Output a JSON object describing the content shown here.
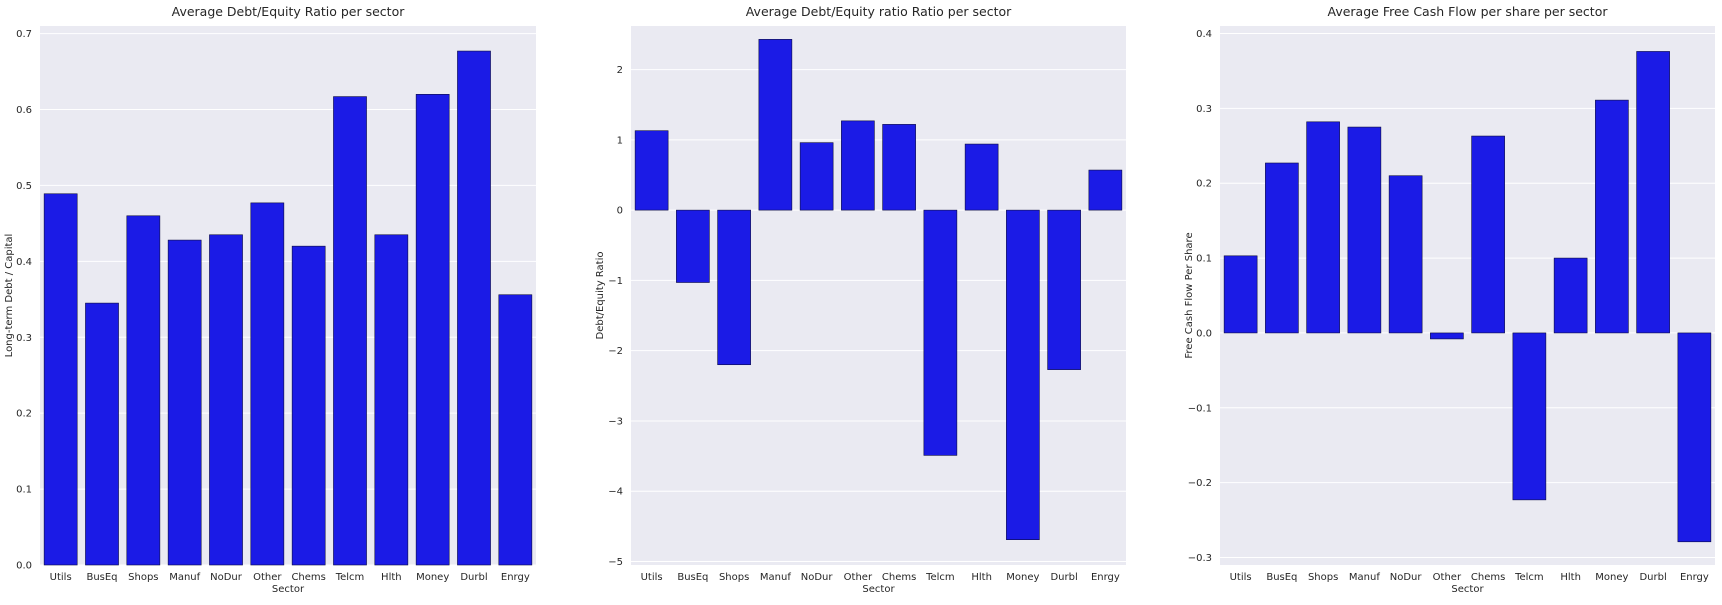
{
  "chart_data": [
    {
      "type": "bar",
      "title": "Average Debt/Equity Ratio per sector",
      "xlabel": "Sector",
      "ylabel": "Long-term Debt / Capital",
      "categories": [
        "Utils",
        "BusEq",
        "Shops",
        "Manuf",
        "NoDur",
        "Other",
        "Chems",
        "Telcm",
        "Hlth",
        "Money",
        "Durbl",
        "Enrgy"
      ],
      "values": [
        0.489,
        0.345,
        0.46,
        0.428,
        0.435,
        0.477,
        0.42,
        0.617,
        0.435,
        0.62,
        0.677,
        0.356
      ],
      "ylim": [
        0,
        0.71
      ],
      "yticks": [
        "0.0",
        "0.1",
        "0.2",
        "0.3",
        "0.4",
        "0.5",
        "0.6",
        "0.7"
      ],
      "grid": true,
      "bar_color": "#1b1be6"
    },
    {
      "type": "bar",
      "title": "Average Debt/Equity ratio Ratio per sector",
      "xlabel": "Sector",
      "ylabel": "Debt/Equity Ratio",
      "categories": [
        "Utils",
        "BusEq",
        "Shops",
        "Manuf",
        "NoDur",
        "Other",
        "Chems",
        "Telcm",
        "Hlth",
        "Money",
        "Durbl",
        "Enrgy"
      ],
      "values": [
        1.13,
        -1.03,
        -2.2,
        2.43,
        0.96,
        1.27,
        1.22,
        -3.49,
        0.94,
        -4.69,
        -2.27,
        0.57
      ],
      "ylim": [
        -5.05,
        2.62
      ],
      "yticks": [
        "−5",
        "−4",
        "−3",
        "−2",
        "−1",
        "0",
        "1",
        "2"
      ],
      "grid": true,
      "bar_color": "#1b1be6"
    },
    {
      "type": "bar",
      "title": "Average Free Cash Flow per share per sector",
      "xlabel": "Sector",
      "ylabel": "Free Cash Flow Per Share",
      "categories": [
        "Utils",
        "BusEq",
        "Shops",
        "Manuf",
        "NoDur",
        "Other",
        "Chems",
        "Telcm",
        "Hlth",
        "Money",
        "Durbl",
        "Enrgy"
      ],
      "values": [
        0.103,
        0.227,
        0.282,
        0.275,
        0.21,
        -0.008,
        0.263,
        -0.223,
        0.1,
        0.311,
        0.376,
        -0.279
      ],
      "ylim": [
        -0.31,
        0.41
      ],
      "yticks": [
        "−0.3",
        "−0.2",
        "−0.1",
        "0.0",
        "0.1",
        "0.2",
        "0.3",
        "0.4"
      ],
      "grid": true,
      "bar_color": "#1b1be6"
    }
  ]
}
